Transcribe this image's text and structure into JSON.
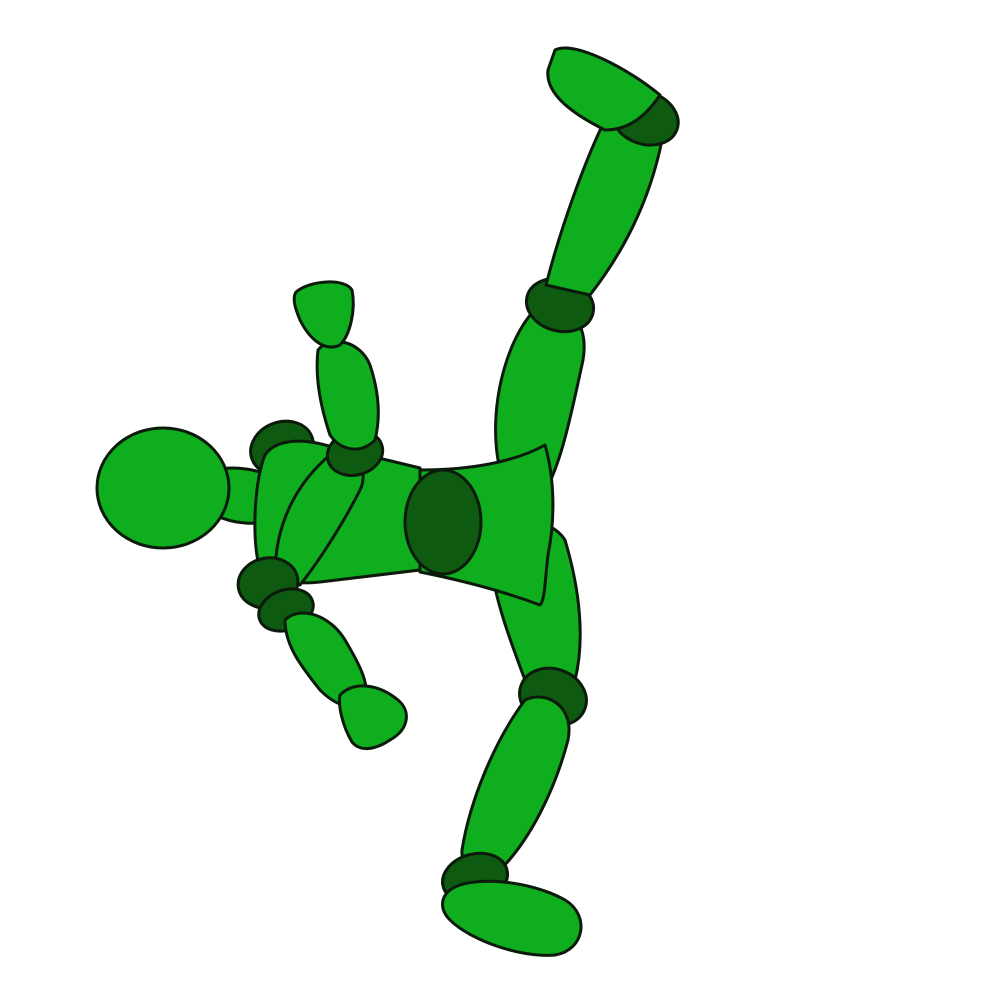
{
  "scene": {
    "subject": "mannequin-figure",
    "background_color": "#ffffff"
  },
  "colors": {
    "body": "#0fae1e",
    "joint": "#0d5a10",
    "outline": "#0b1a0b"
  }
}
